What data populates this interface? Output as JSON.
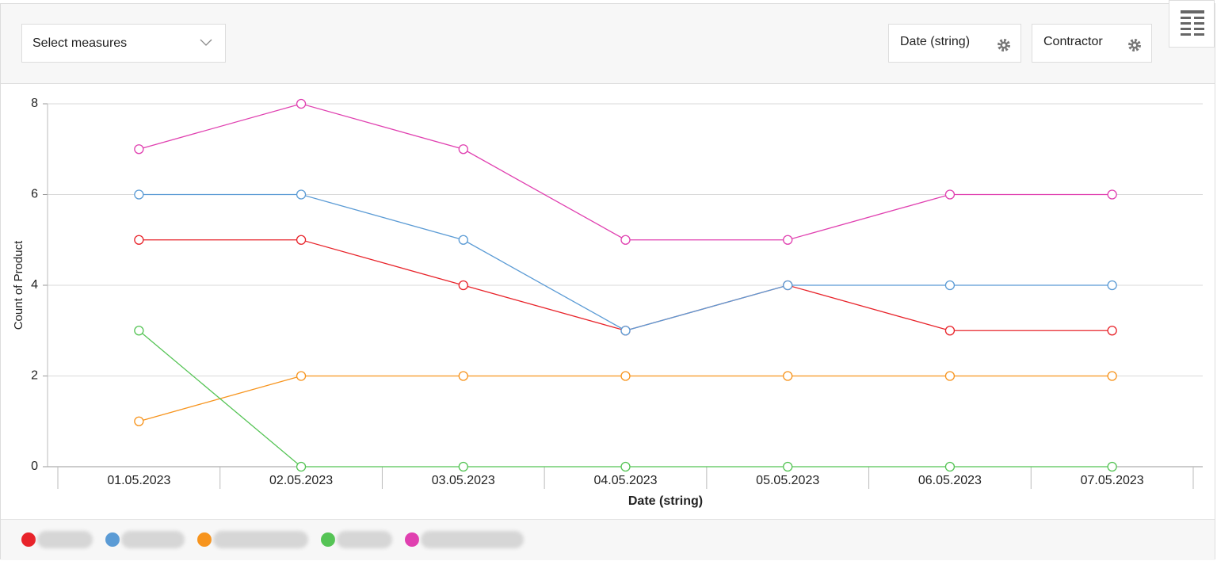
{
  "toolbar": {
    "measures": "Select measures",
    "fields": [
      "Date (string)",
      "Contractor"
    ]
  },
  "chart_data": {
    "type": "line",
    "x_label": "Date (string)",
    "y_label": "Count of Product",
    "categories": [
      "01.05.2023",
      "02.05.2023",
      "03.05.2023",
      "04.05.2023",
      "05.05.2023",
      "06.05.2023",
      "07.05.2023"
    ],
    "series": [
      {
        "color": "#e8232a",
        "values": [
          5,
          5,
          4,
          3,
          4,
          3,
          3
        ]
      },
      {
        "color": "#5b9bd5",
        "values": [
          6,
          6,
          5,
          3,
          4,
          4,
          4
        ]
      },
      {
        "color": "#f7941d",
        "values": [
          1,
          2,
          2,
          2,
          2,
          2,
          2
        ]
      },
      {
        "color": "#55c455",
        "values": [
          3,
          0,
          0,
          0,
          0,
          0,
          0
        ]
      },
      {
        "color": "#e040b0",
        "values": [
          7,
          8,
          7,
          5,
          5,
          6,
          6
        ]
      }
    ],
    "ylim": [
      0,
      8
    ],
    "yticks": [
      0,
      2,
      4,
      6,
      8
    ],
    "grid": true
  }
}
